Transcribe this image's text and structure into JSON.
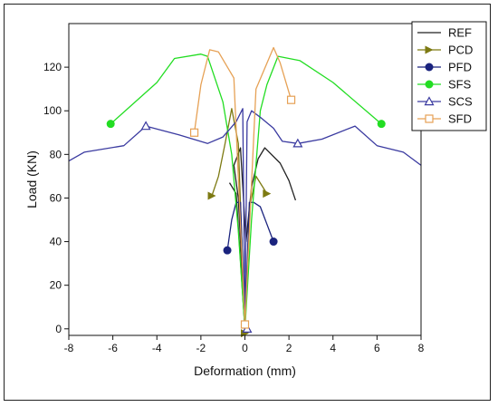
{
  "chart_data": {
    "type": "line",
    "xlabel": "Deformation (mm)",
    "ylabel": "Load (KN)",
    "xlim": [
      -8,
      8
    ],
    "ylim": [
      -3,
      140
    ],
    "xticks": [
      -8,
      -6,
      -4,
      -2,
      0,
      2,
      4,
      6,
      8
    ],
    "yticks": [
      0,
      20,
      40,
      60,
      80,
      100,
      120
    ],
    "legend_position": "top-right",
    "series": [
      {
        "name": "REF",
        "color": "#222222",
        "marker": "none",
        "segments": [
          [
            [
              0,
              0
            ],
            [
              -0.3,
              60
            ],
            [
              -0.5,
              75
            ],
            [
              -0.2,
              83
            ],
            [
              0.05,
              40
            ],
            [
              0.3,
              65
            ],
            [
              0.6,
              78
            ],
            [
              0.9,
              83
            ],
            [
              1.6,
              76
            ],
            [
              2.0,
              68
            ],
            [
              2.3,
              59
            ]
          ],
          [
            [
              0,
              0
            ],
            [
              -0.4,
              62
            ],
            [
              -0.7,
              67
            ]
          ]
        ],
        "end_markers": []
      },
      {
        "name": "PCD",
        "color": "#7d7a12",
        "marker": "triangle-right",
        "segments": [
          [
            [
              -1.5,
              61
            ],
            [
              -1.2,
              70
            ],
            [
              -0.9,
              85
            ],
            [
              -0.6,
              101
            ],
            [
              -0.3,
              85
            ],
            [
              0,
              0
            ],
            [
              0.2,
              55
            ],
            [
              0.5,
              70
            ],
            [
              1.0,
              62
            ]
          ]
        ],
        "end_markers": [
          [
            -1.5,
            61
          ],
          [
            0,
            -2
          ],
          [
            1.0,
            62
          ]
        ]
      },
      {
        "name": "PFD",
        "color": "#1a237e",
        "marker": "circle-filled",
        "segments": [
          [
            [
              -0.8,
              36
            ],
            [
              -0.6,
              50
            ],
            [
              -0.4,
              58
            ],
            [
              -0.2,
              58
            ],
            [
              0,
              0
            ],
            [
              0.2,
              58
            ],
            [
              0.4,
              58
            ],
            [
              0.7,
              56
            ],
            [
              1.0,
              48
            ],
            [
              1.3,
              40
            ]
          ]
        ],
        "end_markers": [
          [
            -0.8,
            36
          ],
          [
            1.3,
            40
          ]
        ]
      },
      {
        "name": "SFS",
        "color": "#22dd22",
        "marker": "circle-filled",
        "segments": [
          [
            [
              -6.1,
              94
            ],
            [
              -4,
              113
            ],
            [
              -3.2,
              124
            ],
            [
              -2,
              126
            ],
            [
              -1.7,
              125
            ],
            [
              -1.0,
              104
            ],
            [
              -0.6,
              80
            ],
            [
              -0.3,
              45
            ],
            [
              0,
              0
            ],
            [
              0.3,
              50
            ],
            [
              0.7,
              100
            ],
            [
              1.0,
              112
            ],
            [
              1.5,
              125
            ],
            [
              2.5,
              123
            ],
            [
              4,
              113
            ],
            [
              6.2,
              94
            ]
          ]
        ],
        "end_markers": [
          [
            -6.1,
            94
          ],
          [
            6.2,
            94
          ]
        ]
      },
      {
        "name": "SCS",
        "color": "#3a3aa0",
        "marker": "triangle-open",
        "segments": [
          [
            [
              -8,
              77
            ],
            [
              -7.3,
              81
            ],
            [
              -5.5,
              84
            ],
            [
              -4.5,
              93
            ],
            [
              -3,
              89
            ],
            [
              -1.7,
              85
            ],
            [
              -1.0,
              88
            ],
            [
              -0.4,
              95
            ],
            [
              -0.1,
              101
            ],
            [
              0,
              0
            ],
            [
              0.1,
              95
            ],
            [
              0.3,
              100
            ],
            [
              0.7,
              97
            ],
            [
              1.3,
              92
            ],
            [
              1.7,
              86
            ],
            [
              2.4,
              85
            ],
            [
              3.5,
              87
            ],
            [
              5.0,
              93
            ],
            [
              6,
              84
            ],
            [
              7.2,
              81
            ],
            [
              8,
              75
            ]
          ]
        ],
        "end_markers": [
          [
            -4.5,
            93
          ],
          [
            0.1,
            0
          ],
          [
            2.4,
            85
          ]
        ]
      },
      {
        "name": "SFD",
        "color": "#e6a155",
        "marker": "square-open",
        "segments": [
          [
            [
              -2.3,
              90
            ],
            [
              -2.0,
              112
            ],
            [
              -1.6,
              128
            ],
            [
              -1.2,
              127
            ],
            [
              -0.5,
              115
            ],
            [
              0,
              2
            ],
            [
              0.5,
              110
            ],
            [
              1.3,
              129
            ],
            [
              1.6,
              122
            ],
            [
              2.1,
              105
            ]
          ]
        ],
        "end_markers": [
          [
            -2.3,
            90
          ],
          [
            0,
            2
          ],
          [
            2.1,
            105
          ]
        ]
      }
    ]
  }
}
